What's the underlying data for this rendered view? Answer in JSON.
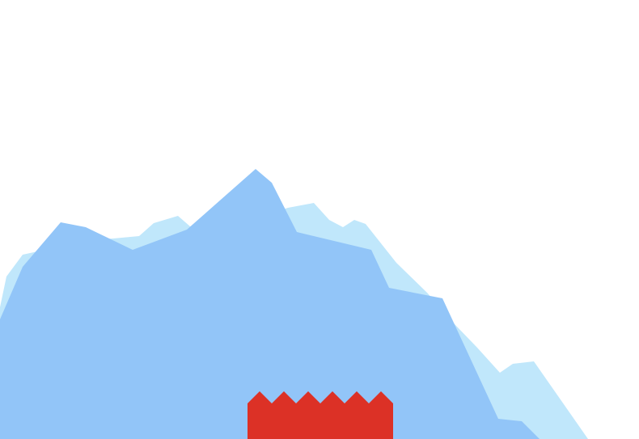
{
  "scene": {
    "background_color": "#ffffff",
    "back_mountain_color": "#c0e7fb",
    "front_mountain_color": "#92c5f8",
    "castle_color": "#dc3126"
  }
}
